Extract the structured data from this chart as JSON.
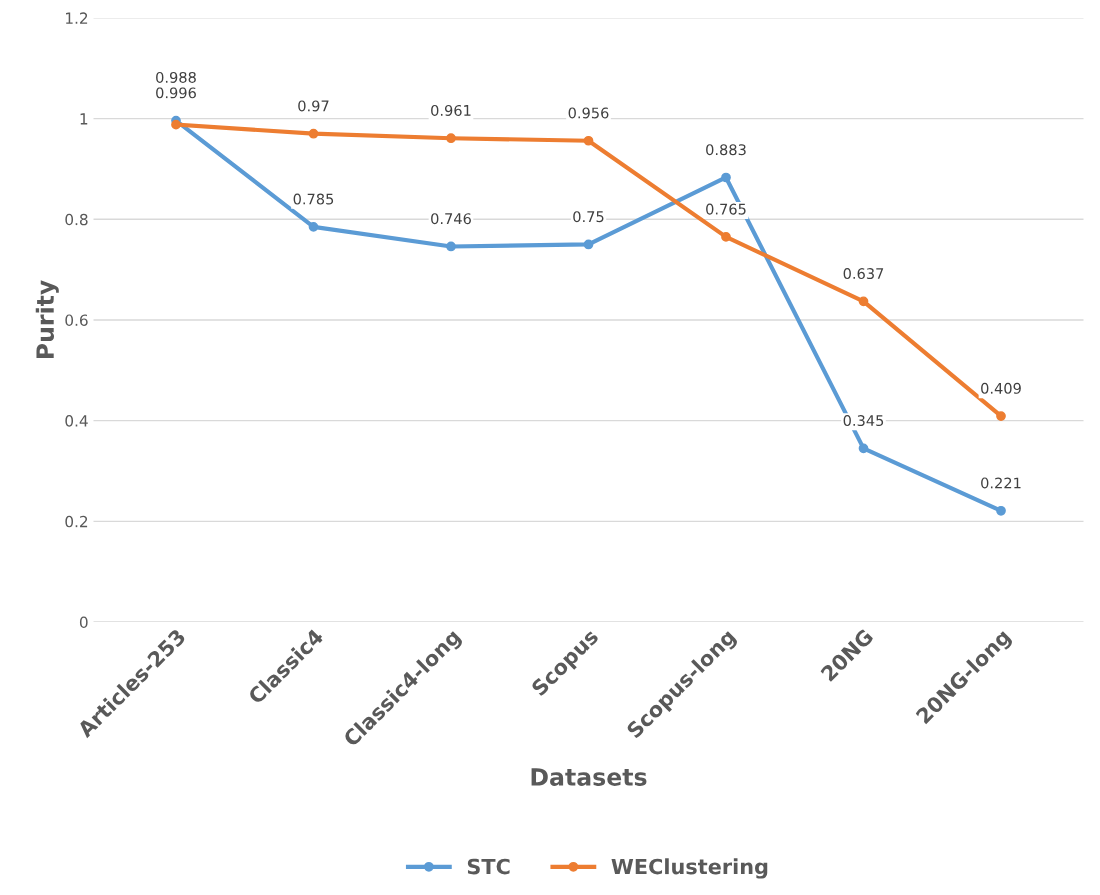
{
  "chart_data": {
    "type": "line",
    "xlabel": "Datasets",
    "ylabel": "Purity",
    "categories": [
      "Articles-253",
      "Classic4",
      "Classic4-long",
      "Scopus",
      "Scopus-long",
      "20NG",
      "20NG-long"
    ],
    "series": [
      {
        "name": "STC",
        "color": "#5b9bd5",
        "values": [
          0.996,
          0.785,
          0.746,
          0.75,
          0.883,
          0.345,
          0.221
        ]
      },
      {
        "name": "WEClustering",
        "color": "#ed7d31",
        "values": [
          0.988,
          0.97,
          0.961,
          0.956,
          0.765,
          0.637,
          0.409
        ]
      }
    ],
    "ylim": [
      0,
      1.2
    ],
    "yticks": [
      0,
      0.2,
      0.4,
      0.6,
      0.8,
      1,
      1.2
    ],
    "grid": "y",
    "legend": "bottom",
    "marker": "circle",
    "line_style": "solid",
    "data_labels": true
  }
}
